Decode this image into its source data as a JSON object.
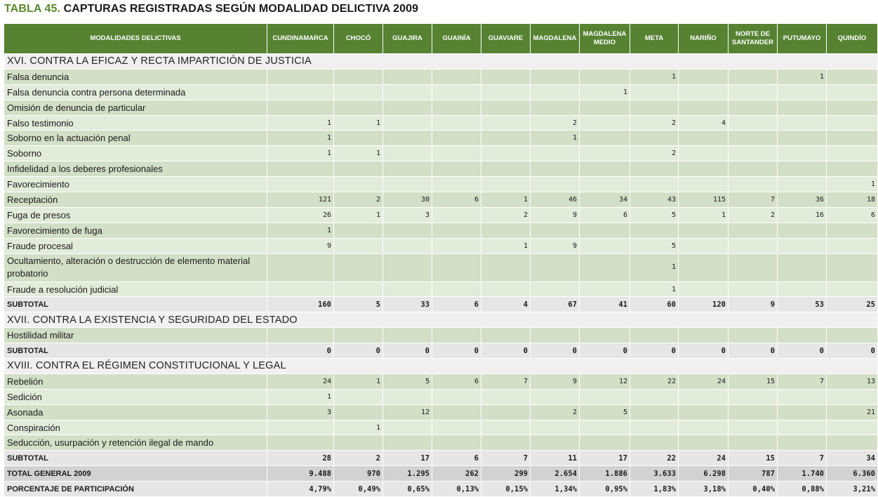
{
  "title": {
    "number": "TABLA 45.",
    "text": "CAPTURAS REGISTRADAS SEGÚN MODALIDAD DELICTIVA 2009"
  },
  "columns": [
    "MODALIDADES DELICTIVAS",
    "CUNDINAMARCA",
    "CHOCÓ",
    "GUAJIRA",
    "GUAINÍA",
    "GUAVIARE",
    "MAGDALENA",
    "MAGDALENA MEDIO",
    "META",
    "NARIÑO",
    "NORTE DE SANTANDER",
    "PUTUMAYO",
    "QUINDÍO"
  ],
  "rows": [
    {
      "type": "section",
      "label": "XVI. CONTRA LA EFICAZ Y RECTA IMPARTICIÓN DE JUSTICIA"
    },
    {
      "type": "data",
      "label": "Falsa denuncia",
      "values": [
        "",
        "",
        "",
        "",
        "",
        "",
        "",
        "1",
        "",
        "",
        "1",
        ""
      ]
    },
    {
      "type": "data",
      "label": "Falsa denuncia contra persona determinada",
      "values": [
        "",
        "",
        "",
        "",
        "",
        "",
        "1",
        "",
        "",
        "",
        "",
        ""
      ]
    },
    {
      "type": "data",
      "label": "Omisión de denuncia de particular",
      "values": [
        "",
        "",
        "",
        "",
        "",
        "",
        "",
        "",
        "",
        "",
        "",
        ""
      ]
    },
    {
      "type": "data",
      "label": "Falso testimonio",
      "values": [
        "1",
        "1",
        "",
        "",
        "",
        "2",
        "",
        "2",
        "4",
        "",
        "",
        ""
      ]
    },
    {
      "type": "data",
      "label": "Soborno en la actuación penal",
      "values": [
        "1",
        "",
        "",
        "",
        "",
        "1",
        "",
        "",
        "",
        "",
        "",
        ""
      ]
    },
    {
      "type": "data",
      "label": "Soborno",
      "values": [
        "1",
        "1",
        "",
        "",
        "",
        "",
        "",
        "2",
        "",
        "",
        "",
        ""
      ]
    },
    {
      "type": "data",
      "label": "Infidelidad a los deberes profesionales",
      "values": [
        "",
        "",
        "",
        "",
        "",
        "",
        "",
        "",
        "",
        "",
        "",
        ""
      ]
    },
    {
      "type": "data",
      "label": "Favorecimiento",
      "values": [
        "",
        "",
        "",
        "",
        "",
        "",
        "",
        "",
        "",
        "",
        "",
        "1"
      ]
    },
    {
      "type": "data",
      "label": "Receptación",
      "values": [
        "121",
        "2",
        "30",
        "6",
        "1",
        "46",
        "34",
        "43",
        "115",
        "7",
        "36",
        "18"
      ]
    },
    {
      "type": "data",
      "label": "Fuga de presos",
      "values": [
        "26",
        "1",
        "3",
        "",
        "2",
        "9",
        "6",
        "5",
        "1",
        "2",
        "16",
        "6"
      ]
    },
    {
      "type": "data",
      "label": "Favorecimiento de fuga",
      "values": [
        "1",
        "",
        "",
        "",
        "",
        "",
        "",
        "",
        "",
        "",
        "",
        ""
      ]
    },
    {
      "type": "data",
      "label": "Fraude procesal",
      "values": [
        "9",
        "",
        "",
        "",
        "1",
        "9",
        "",
        "5",
        "",
        "",
        "",
        ""
      ]
    },
    {
      "type": "data",
      "double": true,
      "label": "Ocultamiento, alteración o destrucción de elemento material probatorio",
      "values": [
        "",
        "",
        "",
        "",
        "",
        "",
        "",
        "1",
        "",
        "",
        "",
        ""
      ]
    },
    {
      "type": "data",
      "label": "Fraude a resolución judicial",
      "values": [
        "",
        "",
        "",
        "",
        "",
        "",
        "",
        "1",
        "",
        "",
        "",
        ""
      ]
    },
    {
      "type": "subtotal",
      "label": "SUBTOTAL",
      "values": [
        "160",
        "5",
        "33",
        "6",
        "4",
        "67",
        "41",
        "60",
        "120",
        "9",
        "53",
        "25"
      ]
    },
    {
      "type": "section",
      "label": "XVII. CONTRA LA EXISTENCIA Y SEGURIDAD DEL ESTADO"
    },
    {
      "type": "data",
      "label": "Hostilidad militar",
      "values": [
        "",
        "",
        "",
        "",
        "",
        "",
        "",
        "",
        "",
        "",
        "",
        ""
      ]
    },
    {
      "type": "subtotal",
      "label": "SUBTOTAL",
      "values": [
        "0",
        "0",
        "0",
        "0",
        "0",
        "0",
        "0",
        "0",
        "0",
        "0",
        "0",
        "0"
      ]
    },
    {
      "type": "section",
      "label": "XVIII. CONTRA EL RÉGIMEN CONSTITUCIONAL Y LEGAL"
    },
    {
      "type": "data",
      "label": "Rebelión",
      "values": [
        "24",
        "1",
        "5",
        "6",
        "7",
        "9",
        "12",
        "22",
        "24",
        "15",
        "7",
        "13"
      ]
    },
    {
      "type": "data",
      "label": "Sedición",
      "values": [
        "1",
        "",
        "",
        "",
        "",
        "",
        "",
        "",
        "",
        "",
        "",
        ""
      ]
    },
    {
      "type": "data",
      "label": "Asonada",
      "values": [
        "3",
        "",
        "12",
        "",
        "",
        "2",
        "5",
        "",
        "",
        "",
        "",
        "21"
      ]
    },
    {
      "type": "data",
      "label": "Conspiración",
      "values": [
        "",
        "1",
        "",
        "",
        "",
        "",
        "",
        "",
        "",
        "",
        "",
        ""
      ]
    },
    {
      "type": "data",
      "label": "Seducción, usurpación y retención ilegal de mando",
      "values": [
        "",
        "",
        "",
        "",
        "",
        "",
        "",
        "",
        "",
        "",
        "",
        ""
      ]
    },
    {
      "type": "subtotal",
      "label": "SUBTOTAL",
      "values": [
        "28",
        "2",
        "17",
        "6",
        "7",
        "11",
        "17",
        "22",
        "24",
        "15",
        "7",
        "34"
      ]
    },
    {
      "type": "total",
      "label": "TOTAL GENERAL 2009",
      "values": [
        "9.488",
        "970",
        "1.295",
        "262",
        "299",
        "2.654",
        "1.886",
        "3.633",
        "6.298",
        "787",
        "1.740",
        "6.360"
      ]
    },
    {
      "type": "pct",
      "label": "PORCENTAJE DE PARTICIPACIÓN",
      "values": [
        "4,79%",
        "0,49%",
        "0,65%",
        "0,13%",
        "0,15%",
        "1,34%",
        "0,95%",
        "1,83%",
        "3,18%",
        "0,40%",
        "0,88%",
        "3,21%"
      ]
    }
  ]
}
